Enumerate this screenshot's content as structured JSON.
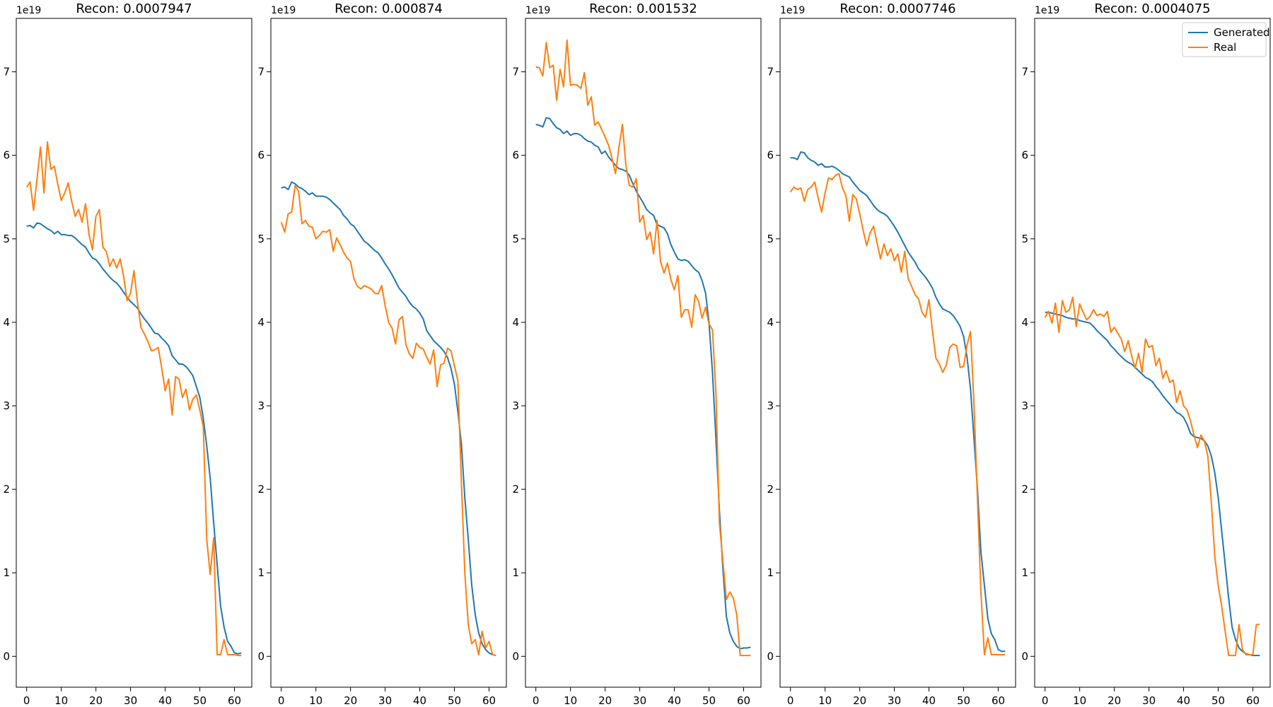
{
  "chart_data": [
    {
      "type": "line",
      "title": "Recon: 0.0007947",
      "y_multiplier_label": "1e19",
      "xlim": [
        -3,
        65
      ],
      "ylim": [
        -0.37,
        7.64
      ],
      "xticks": [
        0,
        10,
        20,
        30,
        40,
        50,
        60
      ],
      "yticks": [
        0,
        1,
        2,
        3,
        4,
        5,
        6,
        7
      ],
      "x": [
        0,
        1,
        2,
        3,
        4,
        5,
        6,
        7,
        8,
        9,
        10,
        11,
        12,
        13,
        14,
        15,
        16,
        17,
        18,
        19,
        20,
        21,
        22,
        23,
        24,
        25,
        26,
        27,
        28,
        29,
        30,
        31,
        32,
        33,
        34,
        35,
        36,
        37,
        38,
        39,
        40,
        41,
        42,
        43,
        44,
        45,
        46,
        47,
        48,
        49,
        50,
        51,
        52,
        53,
        54,
        55,
        56,
        57,
        58,
        59,
        60,
        61,
        62
      ],
      "series": [
        {
          "name": "Generated",
          "values": [
            5.15,
            5.16,
            5.13,
            5.19,
            5.18,
            5.15,
            5.12,
            5.1,
            5.06,
            5.09,
            5.05,
            5.05,
            5.04,
            5.04,
            5.01,
            4.97,
            4.93,
            4.9,
            4.83,
            4.77,
            4.75,
            4.7,
            4.64,
            4.59,
            4.54,
            4.5,
            4.47,
            4.42,
            4.36,
            4.3,
            4.25,
            4.21,
            4.17,
            4.1,
            4.04,
            3.99,
            3.93,
            3.87,
            3.86,
            3.81,
            3.77,
            3.72,
            3.6,
            3.55,
            3.5,
            3.5,
            3.47,
            3.42,
            3.36,
            3.23,
            3.1,
            2.85,
            2.52,
            2.13,
            1.6,
            1.1,
            0.6,
            0.35,
            0.18,
            0.12,
            0.04,
            0.03,
            0.04
          ]
        },
        {
          "name": "Real",
          "values": [
            5.62,
            5.68,
            5.34,
            5.72,
            6.1,
            5.55,
            6.16,
            5.83,
            5.87,
            5.65,
            5.46,
            5.55,
            5.67,
            5.45,
            5.27,
            5.35,
            5.2,
            5.42,
            5.05,
            4.87,
            5.27,
            5.35,
            4.9,
            4.85,
            4.67,
            4.76,
            4.65,
            4.76,
            4.55,
            4.26,
            4.35,
            4.62,
            4.24,
            3.94,
            3.86,
            3.77,
            3.66,
            3.67,
            3.7,
            3.45,
            3.18,
            3.32,
            2.89,
            3.35,
            3.32,
            3.1,
            3.2,
            2.95,
            3.08,
            3.13,
            2.95,
            2.75,
            1.4,
            0.98,
            1.42,
            0.02,
            0.02,
            0.2,
            0.02,
            0.02,
            0.02,
            0.01,
            0.01
          ]
        }
      ]
    },
    {
      "type": "line",
      "title": "Recon: 0.000874",
      "y_multiplier_label": "1e19",
      "xlim": [
        -3,
        65
      ],
      "ylim": [
        -0.37,
        7.64
      ],
      "xticks": [
        0,
        10,
        20,
        30,
        40,
        50,
        60
      ],
      "yticks": [
        0,
        1,
        2,
        3,
        4,
        5,
        6,
        7
      ],
      "x": [
        0,
        1,
        2,
        3,
        4,
        5,
        6,
        7,
        8,
        9,
        10,
        11,
        12,
        13,
        14,
        15,
        16,
        17,
        18,
        19,
        20,
        21,
        22,
        23,
        24,
        25,
        26,
        27,
        28,
        29,
        30,
        31,
        32,
        33,
        34,
        35,
        36,
        37,
        38,
        39,
        40,
        41,
        42,
        43,
        44,
        45,
        46,
        47,
        48,
        49,
        50,
        51,
        52,
        53,
        54,
        55,
        56,
        57,
        58,
        59,
        60,
        61,
        62
      ],
      "series": [
        {
          "name": "Generated",
          "values": [
            5.61,
            5.62,
            5.59,
            5.68,
            5.66,
            5.62,
            5.6,
            5.57,
            5.53,
            5.55,
            5.51,
            5.51,
            5.51,
            5.5,
            5.47,
            5.43,
            5.39,
            5.35,
            5.28,
            5.24,
            5.18,
            5.15,
            5.09,
            5.03,
            4.97,
            4.94,
            4.9,
            4.86,
            4.83,
            4.77,
            4.7,
            4.64,
            4.57,
            4.49,
            4.41,
            4.36,
            4.31,
            4.24,
            4.19,
            4.16,
            4.11,
            4.04,
            3.9,
            3.84,
            3.78,
            3.74,
            3.7,
            3.65,
            3.58,
            3.45,
            3.26,
            2.93,
            2.55,
            1.9,
            1.4,
            0.85,
            0.5,
            0.28,
            0.15,
            0.08,
            0.04,
            0.02,
            0.01
          ]
        },
        {
          "name": "Real",
          "values": [
            5.2,
            5.08,
            5.3,
            5.32,
            5.64,
            5.57,
            5.18,
            5.22,
            5.15,
            5.14,
            5.0,
            5.04,
            5.09,
            5.08,
            5.11,
            4.85,
            5.01,
            4.93,
            4.84,
            4.77,
            4.73,
            4.52,
            4.43,
            4.4,
            4.44,
            4.42,
            4.4,
            4.35,
            4.34,
            4.44,
            4.2,
            4.0,
            3.93,
            3.74,
            4.03,
            4.07,
            3.73,
            3.62,
            3.57,
            3.75,
            3.7,
            3.68,
            3.58,
            3.5,
            3.67,
            3.23,
            3.49,
            3.51,
            3.69,
            3.66,
            3.48,
            3.3,
            2.1,
            1.0,
            0.38,
            0.15,
            0.2,
            0.02,
            0.3,
            0.1,
            0.18,
            0.02,
            0.01
          ]
        }
      ]
    },
    {
      "type": "line",
      "title": "Recon: 0.001532",
      "y_multiplier_label": "1e19",
      "xlim": [
        -3,
        65
      ],
      "ylim": [
        -0.37,
        7.64
      ],
      "xticks": [
        0,
        10,
        20,
        30,
        40,
        50,
        60
      ],
      "yticks": [
        0,
        1,
        2,
        3,
        4,
        5,
        6,
        7
      ],
      "x": [
        0,
        1,
        2,
        3,
        4,
        5,
        6,
        7,
        8,
        9,
        10,
        11,
        12,
        13,
        14,
        15,
        16,
        17,
        18,
        19,
        20,
        21,
        22,
        23,
        24,
        25,
        26,
        27,
        28,
        29,
        30,
        31,
        32,
        33,
        34,
        35,
        36,
        37,
        38,
        39,
        40,
        41,
        42,
        43,
        44,
        45,
        46,
        47,
        48,
        49,
        50,
        51,
        52,
        53,
        54,
        55,
        56,
        57,
        58,
        59,
        60,
        61,
        62
      ],
      "series": [
        {
          "name": "Generated",
          "values": [
            6.37,
            6.36,
            6.34,
            6.45,
            6.44,
            6.38,
            6.33,
            6.31,
            6.26,
            6.29,
            6.24,
            6.26,
            6.26,
            6.24,
            6.2,
            6.17,
            6.16,
            6.12,
            6.1,
            6.02,
            6.05,
            5.98,
            5.93,
            5.88,
            5.84,
            5.83,
            5.81,
            5.76,
            5.66,
            5.57,
            5.5,
            5.43,
            5.35,
            5.31,
            5.28,
            5.17,
            5.15,
            5.13,
            5.06,
            4.93,
            4.84,
            4.76,
            4.74,
            4.75,
            4.73,
            4.68,
            4.63,
            4.6,
            4.5,
            4.35,
            4.0,
            3.4,
            2.6,
            1.75,
            1.05,
            0.48,
            0.28,
            0.18,
            0.12,
            0.09,
            0.1,
            0.1,
            0.11
          ]
        },
        {
          "name": "Real",
          "values": [
            7.06,
            7.05,
            6.95,
            7.35,
            7.05,
            7.08,
            6.66,
            7.03,
            6.82,
            7.38,
            6.84,
            6.85,
            6.84,
            6.8,
            6.99,
            6.6,
            6.7,
            6.36,
            6.4,
            6.31,
            6.22,
            6.12,
            5.96,
            5.78,
            6.1,
            6.37,
            5.88,
            5.64,
            5.62,
            5.72,
            5.2,
            5.28,
            4.99,
            5.08,
            4.82,
            5.22,
            4.73,
            4.59,
            4.71,
            4.51,
            4.39,
            4.56,
            4.06,
            4.15,
            4.15,
            3.94,
            4.33,
            4.25,
            4.05,
            4.18,
            3.98,
            3.91,
            3.15,
            1.6,
            1.14,
            0.68,
            0.77,
            0.7,
            0.5,
            0.01,
            0.01,
            0.01,
            0.01
          ]
        }
      ]
    },
    {
      "type": "line",
      "title": "Recon: 0.0007746",
      "y_multiplier_label": "1e19",
      "xlim": [
        -3,
        65
      ],
      "ylim": [
        -0.37,
        7.64
      ],
      "xticks": [
        0,
        10,
        20,
        30,
        40,
        50,
        60
      ],
      "yticks": [
        0,
        1,
        2,
        3,
        4,
        5,
        6,
        7
      ],
      "x": [
        0,
        1,
        2,
        3,
        4,
        5,
        6,
        7,
        8,
        9,
        10,
        11,
        12,
        13,
        14,
        15,
        16,
        17,
        18,
        19,
        20,
        21,
        22,
        23,
        24,
        25,
        26,
        27,
        28,
        29,
        30,
        31,
        32,
        33,
        34,
        35,
        36,
        37,
        38,
        39,
        40,
        41,
        42,
        43,
        44,
        45,
        46,
        47,
        48,
        49,
        50,
        51,
        52,
        53,
        54,
        55,
        56,
        57,
        58,
        59,
        60,
        61,
        62
      ],
      "series": [
        {
          "name": "Generated",
          "values": [
            5.97,
            5.97,
            5.95,
            6.04,
            6.03,
            5.97,
            5.94,
            5.92,
            5.88,
            5.9,
            5.86,
            5.86,
            5.87,
            5.85,
            5.82,
            5.78,
            5.76,
            5.74,
            5.68,
            5.63,
            5.58,
            5.55,
            5.52,
            5.46,
            5.4,
            5.35,
            5.32,
            5.3,
            5.27,
            5.21,
            5.15,
            5.08,
            5.0,
            4.92,
            4.84,
            4.78,
            4.72,
            4.64,
            4.59,
            4.54,
            4.48,
            4.41,
            4.3,
            4.22,
            4.16,
            4.14,
            4.12,
            4.08,
            4.02,
            3.95,
            3.83,
            3.58,
            3.2,
            2.6,
            2.0,
            1.25,
            0.85,
            0.45,
            0.27,
            0.2,
            0.08,
            0.06,
            0.06
          ]
        },
        {
          "name": "Real",
          "values": [
            5.56,
            5.62,
            5.59,
            5.61,
            5.45,
            5.59,
            5.62,
            5.68,
            5.49,
            5.32,
            5.55,
            5.73,
            5.71,
            5.76,
            5.78,
            5.61,
            5.52,
            5.21,
            5.53,
            5.48,
            5.3,
            5.1,
            4.92,
            5.07,
            5.15,
            4.95,
            4.76,
            4.94,
            4.8,
            4.88,
            4.74,
            4.82,
            4.6,
            4.85,
            4.52,
            4.43,
            4.33,
            4.28,
            4.12,
            4.06,
            4.27,
            3.9,
            3.57,
            3.5,
            3.4,
            3.49,
            3.7,
            3.74,
            3.72,
            3.46,
            3.47,
            3.73,
            3.89,
            3.01,
            1.88,
            0.76,
            0.02,
            0.22,
            0.02,
            0.02,
            0.02,
            0.02,
            0.02
          ]
        }
      ]
    },
    {
      "type": "line",
      "title": "Recon: 0.0004075",
      "y_multiplier_label": "1e19",
      "xlim": [
        -3,
        65
      ],
      "ylim": [
        -0.37,
        7.64
      ],
      "xticks": [
        0,
        10,
        20,
        30,
        40,
        50,
        60
      ],
      "yticks": [
        0,
        1,
        2,
        3,
        4,
        5,
        6,
        7
      ],
      "legend": {
        "position": "upper right",
        "entries": [
          "Generated",
          "Real"
        ]
      },
      "x": [
        0,
        1,
        2,
        3,
        4,
        5,
        6,
        7,
        8,
        9,
        10,
        11,
        12,
        13,
        14,
        15,
        16,
        17,
        18,
        19,
        20,
        21,
        22,
        23,
        24,
        25,
        26,
        27,
        28,
        29,
        30,
        31,
        32,
        33,
        34,
        35,
        36,
        37,
        38,
        39,
        40,
        41,
        42,
        43,
        44,
        45,
        46,
        47,
        48,
        49,
        50,
        51,
        52,
        53,
        54,
        55,
        56,
        57,
        58,
        59,
        60,
        61,
        62
      ],
      "series": [
        {
          "name": "Generated",
          "values": [
            4.12,
            4.12,
            4.11,
            4.1,
            4.09,
            4.08,
            4.06,
            4.05,
            4.04,
            4.04,
            4.02,
            4.01,
            4.0,
            3.99,
            3.95,
            3.9,
            3.86,
            3.82,
            3.78,
            3.72,
            3.68,
            3.63,
            3.59,
            3.55,
            3.52,
            3.5,
            3.46,
            3.42,
            3.38,
            3.34,
            3.32,
            3.29,
            3.23,
            3.18,
            3.12,
            3.07,
            3.02,
            2.97,
            2.92,
            2.9,
            2.86,
            2.78,
            2.67,
            2.63,
            2.62,
            2.61,
            2.58,
            2.52,
            2.4,
            2.2,
            1.9,
            1.5,
            1.1,
            0.7,
            0.35,
            0.2,
            0.1,
            0.06,
            0.03,
            0.02,
            0.01,
            0.01,
            0.01
          ]
        },
        {
          "name": "Real",
          "values": [
            4.06,
            4.13,
            3.99,
            4.23,
            3.88,
            4.26,
            4.12,
            4.15,
            4.3,
            3.95,
            4.22,
            4.12,
            4.03,
            4.07,
            4.15,
            4.08,
            4.1,
            4.07,
            4.13,
            3.88,
            3.94,
            3.87,
            3.8,
            3.65,
            3.78,
            3.6,
            3.45,
            3.63,
            3.4,
            3.8,
            3.7,
            3.72,
            3.48,
            3.57,
            3.33,
            3.42,
            3.28,
            3.31,
            3.04,
            3.18,
            3.0,
            2.95,
            2.82,
            2.65,
            2.5,
            2.65,
            2.58,
            2.4,
            1.85,
            1.2,
            0.85,
            0.6,
            0.3,
            0.01,
            0.01,
            0.01,
            0.38,
            0.08,
            0.02,
            0.02,
            0.02,
            0.38,
            0.38
          ]
        }
      ]
    }
  ],
  "legend_labels": [
    "Generated",
    "Real"
  ],
  "colors": {
    "Generated": "#1f77b4",
    "Real": "#ff7f0e",
    "axes": "#000000"
  }
}
